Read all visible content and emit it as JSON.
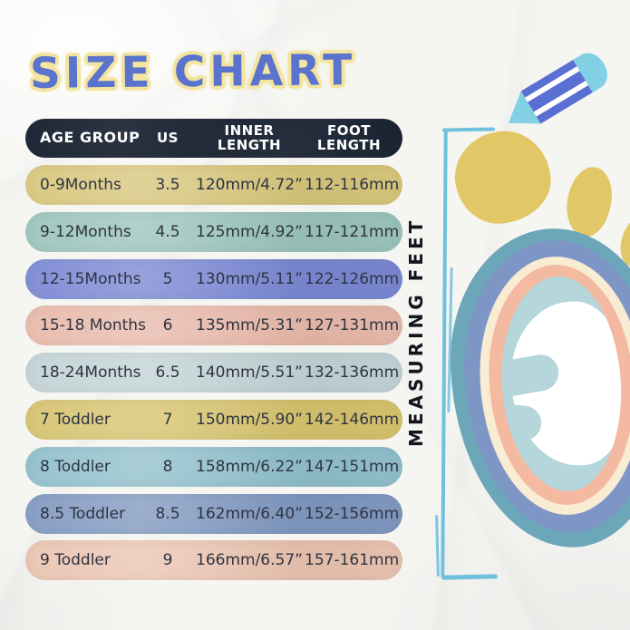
{
  "title": "SIZE CHART",
  "measuring_label": "MEASURING FEET",
  "table": {
    "headers": [
      {
        "label": "AGE GROUP"
      },
      {
        "label": "US"
      },
      {
        "label": "INNER\nLENGTH"
      },
      {
        "label": "FOOT\nLENGTH"
      }
    ],
    "rows": [
      {
        "age_group": "0-9Months",
        "us": "3.5",
        "inner_length": "120mm/4.72”",
        "foot_length": "112-116mm",
        "color": "#d7c67b"
      },
      {
        "age_group": "9-12Months",
        "us": "4.5",
        "inner_length": "125mm/4.92”",
        "foot_length": "117-121mm",
        "color": "#9bc4bb"
      },
      {
        "age_group": "12-15Months",
        "us": "5",
        "inner_length": "130mm/5.11”",
        "foot_length": "122-126mm",
        "color": "#7a88d3"
      },
      {
        "age_group": "15-18 Months",
        "us": "6",
        "inner_length": "135mm/5.31”",
        "foot_length": "127-131mm",
        "color": "#e8b9aa"
      },
      {
        "age_group": "18-24Months",
        "us": "6.5",
        "inner_length": "140mm/5.51”",
        "foot_length": "132-136mm",
        "color": "#c2d2d5"
      },
      {
        "age_group": "7 Toddler",
        "us": "7",
        "inner_length": "150mm/5.90”",
        "foot_length": "142-146mm",
        "color": "#d6c36e"
      },
      {
        "age_group": "8 Toddler",
        "us": "8",
        "inner_length": "158mm/6.22”",
        "foot_length": "147-151mm",
        "color": "#90bfcb"
      },
      {
        "age_group": "8.5 Toddler",
        "us": "8.5",
        "inner_length": "162mm/6.40”",
        "foot_length": "152-156mm",
        "color": "#8098c0"
      },
      {
        "age_group": "9 Toddler",
        "us": "9",
        "inner_length": "166mm/6.57”",
        "foot_length": "157-161mm",
        "color": "#eac3b0"
      }
    ]
  },
  "colors": {
    "title_fill": "#5a73cc",
    "title_halo": "#f3e5a0",
    "header_bg": "#1b2433",
    "header_text": "#ffffff",
    "row_text": "#2e3442",
    "pencil_body": "#5a6fd2",
    "pencil_tip": "#82d0e4",
    "bracket_line": "#70c1dd",
    "foot_outer": "#6ba7b9",
    "foot_ring2": "#7e96c5",
    "foot_ring3": "#f8ecd2",
    "foot_ring4": "#f4b9a1",
    "foot_ring5": "#b5d6da",
    "toe_yellow": "#e2c766"
  }
}
